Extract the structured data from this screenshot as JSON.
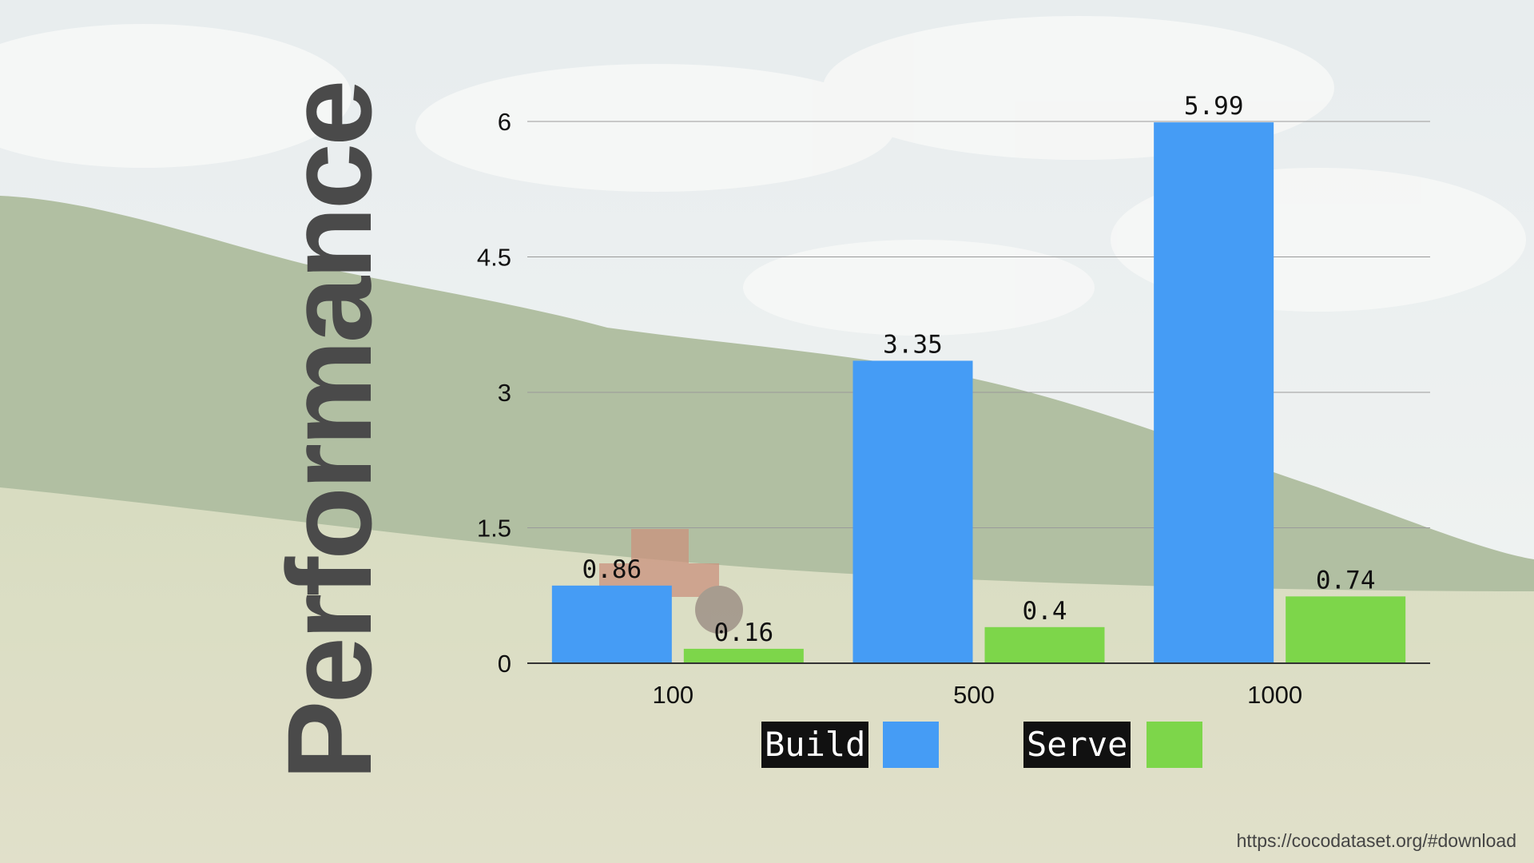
{
  "slide": {
    "title": "Performance",
    "source": "https://cocodataset.org/#download"
  },
  "colors": {
    "build": "#459cf5",
    "serve": "#7dd64a",
    "grid": "#9a9a9a",
    "axis": "#333333",
    "text": "#111111"
  },
  "chart_data": {
    "type": "bar",
    "categories": [
      "100",
      "500",
      "1000"
    ],
    "series": [
      {
        "name": "Build",
        "values": [
          0.86,
          3.35,
          5.99
        ]
      },
      {
        "name": "Serve",
        "values": [
          0.16,
          0.4,
          0.74
        ]
      }
    ],
    "data_labels": [
      [
        "0.86",
        "3.35",
        "5.99"
      ],
      [
        "0.16",
        "0.4",
        "0.74"
      ]
    ],
    "y_ticks": [
      "0",
      "1.5",
      "3",
      "4.5",
      "6"
    ],
    "ylim": [
      0,
      6
    ],
    "grid": true,
    "legend_position": "bottom",
    "title": "",
    "xlabel": "",
    "ylabel": ""
  }
}
